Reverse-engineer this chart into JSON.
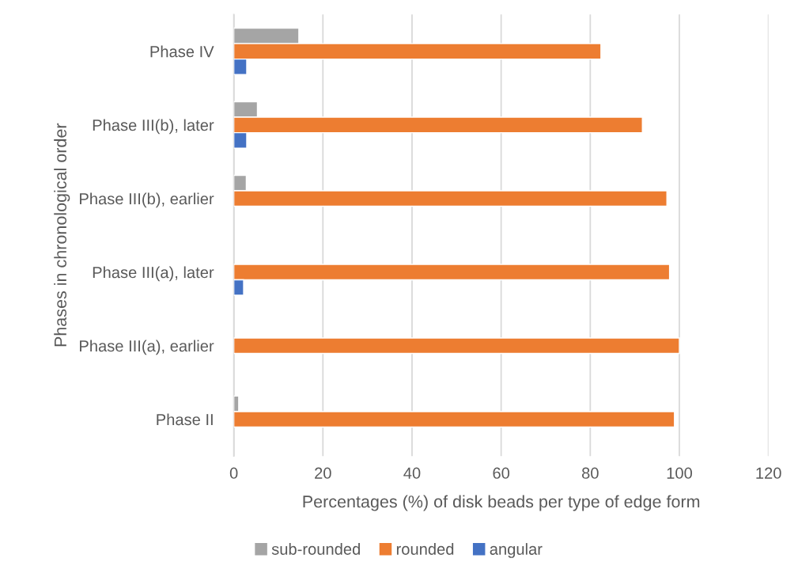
{
  "chart_data": {
    "type": "bar",
    "orientation": "horizontal",
    "xlabel": "Percentages (%) of disk beads per type of edge form",
    "ylabel": "Phases in chronological order",
    "categories": [
      "Phase IV",
      "Phase III(b), later",
      "Phase III(b), earlier",
      "Phase III(a), later",
      "Phase III(a), earlier",
      "Phase II"
    ],
    "series": [
      {
        "name": "sub-rounded",
        "color": "#a5a5a5",
        "values": [
          14.6,
          5.3,
          2.8,
          null,
          null,
          1.1
        ]
      },
      {
        "name": "rounded",
        "color": "#ed7d31",
        "values": [
          82.4,
          91.7,
          97.2,
          97.8,
          100,
          98.9
        ]
      },
      {
        "name": "angular",
        "color": "#4472c4",
        "values": [
          2.9,
          2.9,
          null,
          2.2,
          null,
          null
        ]
      }
    ],
    "xlim": [
      0,
      120
    ],
    "xticks": [
      0,
      20,
      40,
      60,
      80,
      100,
      120
    ],
    "grid": "x",
    "legend": "bottom"
  }
}
